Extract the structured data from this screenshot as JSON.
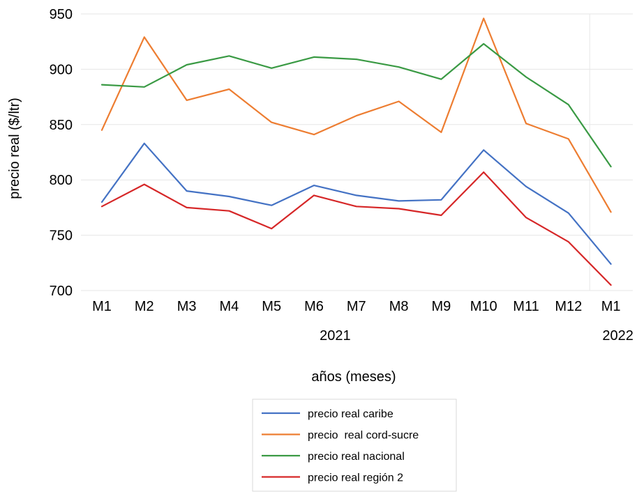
{
  "chart_data": {
    "type": "line",
    "categories": [
      "M1",
      "M2",
      "M3",
      "M4",
      "M5",
      "M6",
      "M7",
      "M8",
      "M9",
      "M10",
      "M11",
      "M12",
      "M1"
    ],
    "groups": [
      {
        "label": "2021",
        "start": 0,
        "end": 11
      },
      {
        "label": "2022",
        "start": 12,
        "end": 12
      }
    ],
    "xlabel": "años (meses)",
    "ylabel": "precio real ($/ltr)",
    "ylim": [
      700,
      950
    ],
    "yticks": [
      700,
      750,
      800,
      850,
      900,
      950
    ],
    "grid": true,
    "legend_position": "bottom",
    "series": [
      {
        "name": "precio real caribe",
        "color": "#4472C4",
        "values": [
          780,
          833,
          790,
          785,
          777,
          795,
          786,
          781,
          782,
          827,
          794,
          770,
          724
        ]
      },
      {
        "name": "precio  real cord-sucre",
        "color": "#ED7D31",
        "values": [
          845,
          929,
          872,
          882,
          852,
          841,
          858,
          871,
          843,
          946,
          851,
          837,
          771
        ]
      },
      {
        "name": "precio real nacional",
        "color": "#3A9A44",
        "values": [
          886,
          884,
          904,
          912,
          901,
          911,
          909,
          902,
          891,
          923,
          893,
          868,
          812
        ]
      },
      {
        "name": "precio real región 2",
        "color": "#D62728",
        "values": [
          776,
          796,
          775,
          772,
          756,
          786,
          776,
          774,
          768,
          807,
          766,
          744,
          705
        ]
      }
    ]
  }
}
